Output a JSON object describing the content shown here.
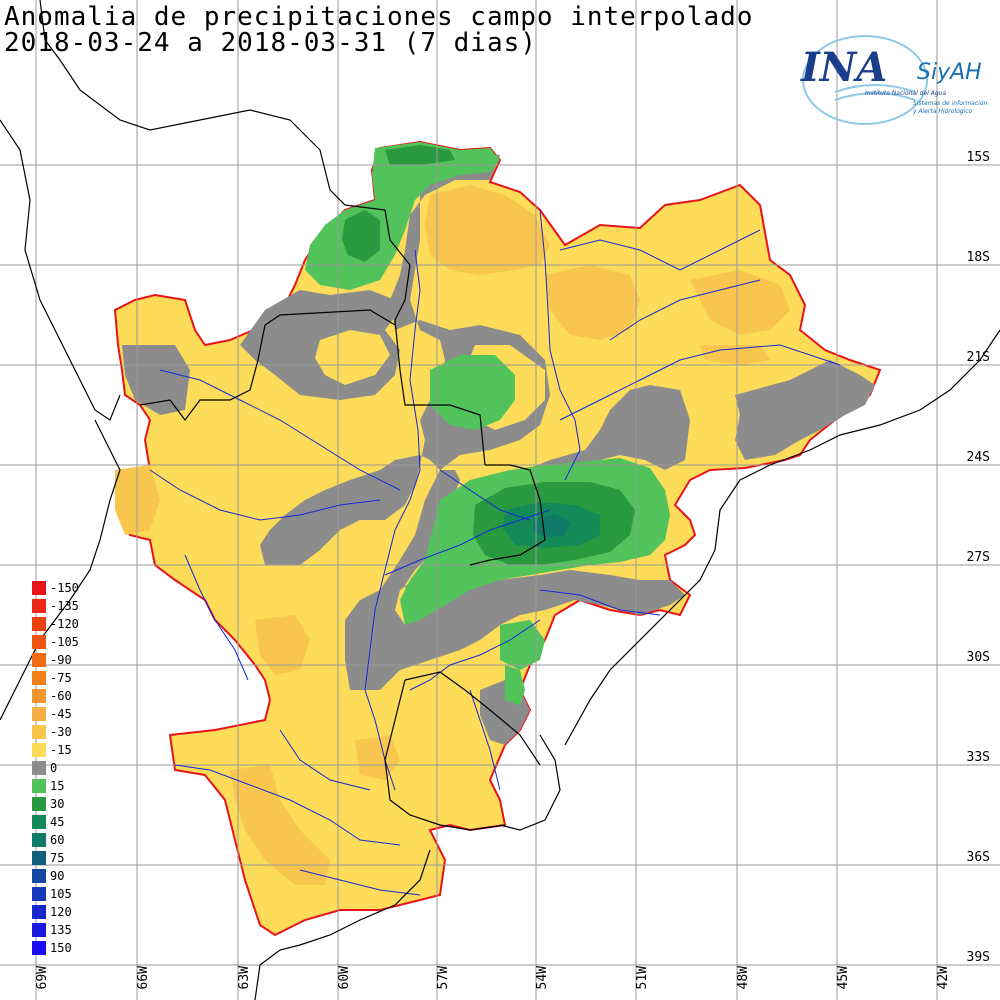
{
  "title": {
    "line1": "Anomalia de precipitaciones campo interpolado",
    "line2": "2018-03-24 a 2018-03-31 (7 dias)"
  },
  "logo": {
    "mark": "INA",
    "brand": "SiyAH",
    "org": "Instituto Nacional del Agua",
    "system_line1": "Sistemas de información",
    "system_line2": "y Alerta Hidrológico"
  },
  "lat_labels": [
    "15S",
    "18S",
    "21S",
    "24S",
    "27S",
    "30S",
    "33S",
    "36S",
    "39S"
  ],
  "lon_labels": [
    "69W",
    "66W",
    "63W",
    "60W",
    "57W",
    "54W",
    "51W",
    "48W",
    "45W",
    "42W"
  ],
  "legend": [
    {
      "label": "-150",
      "color": "#e8141a"
    },
    {
      "label": "-135",
      "color": "#ea2a16"
    },
    {
      "label": "-120",
      "color": "#ec3f14"
    },
    {
      "label": "-105",
      "color": "#ee5513"
    },
    {
      "label": "-90",
      "color": "#f06b12"
    },
    {
      "label": "-75",
      "color": "#f28018"
    },
    {
      "label": "-60",
      "color": "#f3962c"
    },
    {
      "label": "-45",
      "color": "#f6af45"
    },
    {
      "label": "-30",
      "color": "#f8c64f"
    },
    {
      "label": "-15",
      "color": "#fcdc58"
    },
    {
      "label": "0",
      "color": "#8c8c8c"
    },
    {
      "label": "15",
      "color": "#52c35a"
    },
    {
      "label": "30",
      "color": "#2a9a41"
    },
    {
      "label": "45",
      "color": "#138a57"
    },
    {
      "label": "60",
      "color": "#0f7a68"
    },
    {
      "label": "75",
      "color": "#125f7c"
    },
    {
      "label": "90",
      "color": "#1447a3"
    },
    {
      "label": "105",
      "color": "#1638b9"
    },
    {
      "label": "120",
      "color": "#1828cf"
    },
    {
      "label": "135",
      "color": "#1a1ae0"
    },
    {
      "label": "150",
      "color": "#1c0cf2"
    }
  ],
  "colors": {
    "basin_outline": "#e8141a",
    "rivers": "#1428d8",
    "borders": "#000000",
    "grid": "#9a9a9a"
  }
}
